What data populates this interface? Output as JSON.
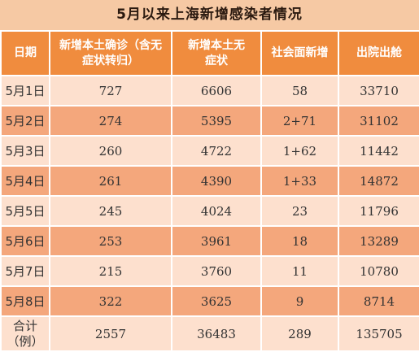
{
  "title": "5月以来上海新增感染者情况",
  "headers": [
    "日期",
    "新增本土确诊（含无症状转归）",
    "新增本土无症状",
    "社会面新增",
    "出院出舱"
  ],
  "rows": [
    [
      "5月1日",
      "727",
      "6606",
      "58",
      "33710"
    ],
    [
      "5月2日",
      "274",
      "5395",
      "2+71",
      "31102"
    ],
    [
      "5月3日",
      "260",
      "4722",
      "1+62",
      "11442"
    ],
    [
      "5月4日",
      "261",
      "4390",
      "1+33",
      "14872"
    ],
    [
      "5月5日",
      "245",
      "4024",
      "23",
      "11796"
    ],
    [
      "5月6日",
      "253",
      "3961",
      "18",
      "13289"
    ],
    [
      "5月7日",
      "215",
      "3760",
      "11",
      "10780"
    ],
    [
      "5月8日",
      "322",
      "3625",
      "9",
      "8714"
    ]
  ],
  "total": [
    "合计（例）",
    "2557",
    "36483",
    "289",
    "135705"
  ],
  "colors": {
    "header": "#f08c3e",
    "row_light": "#fde0ce",
    "row_dark": "#f4a77c",
    "title_bg": "#f6c9a4"
  }
}
